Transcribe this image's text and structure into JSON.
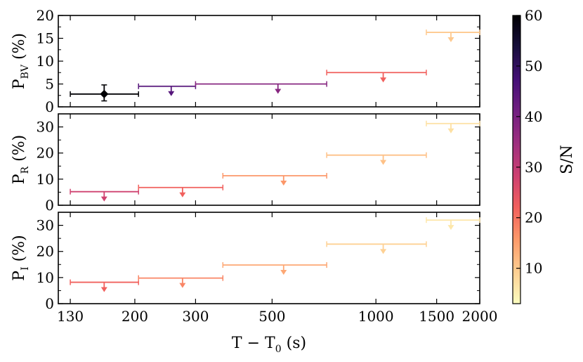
{
  "chart_data": {
    "type": "scatter",
    "x_scale": "log",
    "xlim": [
      120,
      2000
    ],
    "x_ticks": [
      130,
      200,
      300,
      500,
      1000,
      1500,
      2000
    ],
    "x_tick_labels": [
      "130",
      "200",
      "300",
      "500",
      "1000",
      "1500",
      "2000"
    ],
    "xlabel": {
      "main": "T − T",
      "sub": "0",
      "tail": " (s)"
    },
    "colorbar": {
      "label": "S/N",
      "range": [
        3,
        60
      ],
      "ticks": [
        10,
        20,
        30,
        40,
        50,
        60
      ],
      "tick_labels": [
        "10",
        "20",
        "30",
        "40",
        "50",
        "60"
      ],
      "colormap": "magma_r",
      "stops": [
        "#fcfdbf",
        "#fecf92",
        "#fd9a6a",
        "#f1605d",
        "#cd4071",
        "#9e2f7f",
        "#721f81",
        "#451077",
        "#180f3d",
        "#000004"
      ]
    },
    "panels": [
      {
        "name": "bv",
        "ylabel": {
          "main": "P",
          "sub": "BV",
          "tail": " (%)"
        },
        "ylim": [
          0,
          20
        ],
        "y_ticks": [
          0,
          5,
          10,
          15,
          20
        ],
        "y_tick_labels": [
          "0",
          "5",
          "10",
          "15",
          "20"
        ],
        "points": [
          {
            "x": 163,
            "xmin": 130,
            "xmax": 205,
            "y": 2.8,
            "yerr_lo": 1.5,
            "yerr_hi": 2.0,
            "sn": 60,
            "detection": true
          },
          {
            "x": 255,
            "xmin": 205,
            "xmax": 300,
            "y": 4.5,
            "sn": 45,
            "detection": false
          },
          {
            "x": 520,
            "xmin": 300,
            "xmax": 720,
            "y": 5.0,
            "sn": 38,
            "detection": false
          },
          {
            "x": 1050,
            "xmin": 720,
            "xmax": 1400,
            "y": 7.5,
            "sn": 22,
            "detection": false
          },
          {
            "x": 1650,
            "xmin": 1400,
            "xmax": 2000,
            "y": 16.3,
            "sn": 10,
            "detection": false
          }
        ]
      },
      {
        "name": "r",
        "ylabel": {
          "main": "P",
          "sub": "R",
          "tail": " (%)"
        },
        "ylim": [
          0,
          35
        ],
        "y_ticks": [
          0,
          10,
          20,
          30
        ],
        "y_tick_labels": [
          "0",
          "10",
          "20",
          "30"
        ],
        "points": [
          {
            "x": 163,
            "xmin": 130,
            "xmax": 205,
            "y": 5.2,
            "sn": 28,
            "detection": false
          },
          {
            "x": 275,
            "xmin": 205,
            "xmax": 360,
            "y": 6.8,
            "sn": 22,
            "detection": false
          },
          {
            "x": 540,
            "xmin": 360,
            "xmax": 720,
            "y": 11.3,
            "sn": 16,
            "detection": false
          },
          {
            "x": 1050,
            "xmin": 720,
            "xmax": 1400,
            "y": 19.2,
            "sn": 11,
            "detection": false
          },
          {
            "x": 1650,
            "xmin": 1400,
            "xmax": 2000,
            "y": 31.3,
            "sn": 7,
            "detection": false
          }
        ]
      },
      {
        "name": "i",
        "ylabel": {
          "main": "P",
          "sub": "I",
          "tail": " (%)"
        },
        "ylim": [
          0,
          35
        ],
        "y_ticks": [
          0,
          10,
          20,
          30
        ],
        "y_tick_labels": [
          "0",
          "10",
          "20",
          "30"
        ],
        "points": [
          {
            "x": 163,
            "xmin": 130,
            "xmax": 205,
            "y": 8.2,
            "sn": 22,
            "detection": false
          },
          {
            "x": 275,
            "xmin": 205,
            "xmax": 360,
            "y": 9.8,
            "sn": 18,
            "detection": false
          },
          {
            "x": 540,
            "xmin": 360,
            "xmax": 720,
            "y": 14.8,
            "sn": 14,
            "detection": false
          },
          {
            "x": 1050,
            "xmin": 720,
            "xmax": 1400,
            "y": 22.8,
            "sn": 9,
            "detection": false
          },
          {
            "x": 1650,
            "xmin": 1400,
            "xmax": 2000,
            "y": 32.0,
            "sn": 6,
            "detection": false
          }
        ]
      }
    ]
  }
}
